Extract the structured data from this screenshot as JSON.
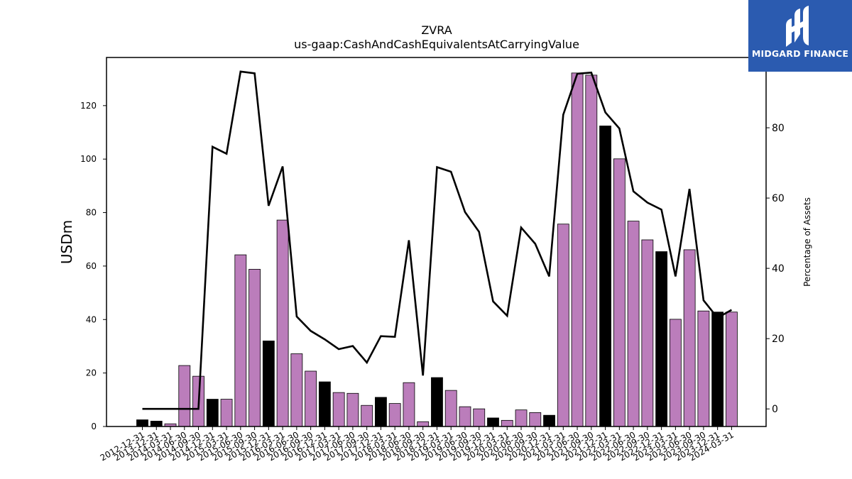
{
  "chart_data": {
    "type": "bar",
    "title": "ZVRA",
    "subtitle": "us-gaap:CashAndCashEquivalentsAtCarryingValue",
    "ylabel": "USDm",
    "y2label": "Percentage of Assets",
    "ylim": [
      0,
      138
    ],
    "y2lim": [
      -5,
      100
    ],
    "yticks": [
      0,
      20,
      40,
      60,
      80,
      100,
      120
    ],
    "y2ticks": [
      0,
      20,
      40,
      60,
      80
    ],
    "grid": false,
    "categories": [
      "2012-12-31",
      "2013-12-31",
      "2014-03-31",
      "2014-06-30",
      "2014-09-30",
      "2014-12-31",
      "2015-03-31",
      "2015-06-30",
      "2015-09-30",
      "2015-12-31",
      "2016-03-31",
      "2016-06-30",
      "2016-09-30",
      "2016-12-31",
      "2017-03-31",
      "2017-06-30",
      "2017-09-30",
      "2017-12-31",
      "2018-03-31",
      "2018-06-30",
      "2018-09-30",
      "2018-12-31",
      "2019-03-31",
      "2019-06-30",
      "2019-09-30",
      "2019-12-31",
      "2020-03-31",
      "2020-06-30",
      "2020-09-30",
      "2020-12-31",
      "2021-03-31",
      "2021-06-30",
      "2021-09-30",
      "2021-12-31",
      "2022-03-31",
      "2022-06-30",
      "2022-09-30",
      "2022-12-31",
      "2023-03-31",
      "2023-06-30",
      "2023-09-30",
      "2023-12-31",
      "2024-03-31"
    ],
    "series": [
      {
        "kind": "bar",
        "values": [
          2.5,
          2.0,
          1.0,
          22.8,
          18.8,
          10.2,
          10.2,
          64.2,
          58.8,
          32.0,
          77.2,
          27.2,
          20.7,
          16.7,
          12.7,
          12.4,
          7.9,
          10.9,
          8.6,
          16.4,
          1.8,
          18.3,
          13.5,
          7.4,
          6.6,
          3.2,
          2.3,
          6.2,
          5.2,
          4.2,
          75.7,
          132.2,
          131.4,
          112.4,
          100.1,
          76.8,
          69.8,
          65.4,
          40.1,
          66.1,
          43.2,
          42.8,
          42.8
        ],
        "colors": [
          "#000000",
          "#000000",
          "#bb7dbb",
          "#bb7dbb",
          "#bb7dbb",
          "#000000",
          "#bb7dbb",
          "#bb7dbb",
          "#bb7dbb",
          "#000000",
          "#bb7dbb",
          "#bb7dbb",
          "#bb7dbb",
          "#000000",
          "#bb7dbb",
          "#bb7dbb",
          "#bb7dbb",
          "#000000",
          "#bb7dbb",
          "#bb7dbb",
          "#bb7dbb",
          "#000000",
          "#bb7dbb",
          "#bb7dbb",
          "#bb7dbb",
          "#000000",
          "#bb7dbb",
          "#bb7dbb",
          "#bb7dbb",
          "#000000",
          "#bb7dbb",
          "#bb7dbb",
          "#bb7dbb",
          "#000000",
          "#bb7dbb",
          "#bb7dbb",
          "#bb7dbb",
          "#000000",
          "#bb7dbb",
          "#bb7dbb",
          "#bb7dbb",
          "#000000",
          "#bb7dbb"
        ]
      },
      {
        "kind": "line",
        "axis": "right",
        "color": "#000000",
        "values": [
          0.0,
          0.0,
          0.0,
          0.0,
          0.0,
          74.6,
          72.6,
          96.0,
          95.5,
          57.8,
          69.0,
          26.3,
          22.2,
          19.8,
          17.0,
          17.9,
          13.2,
          20.7,
          20.5,
          48.0,
          9.5,
          68.8,
          67.5,
          56.0,
          50.4,
          30.6,
          26.5,
          51.6,
          47.0,
          37.7,
          83.7,
          95.4,
          95.7,
          84.4,
          79.8,
          61.9,
          58.7,
          56.7,
          37.7,
          62.6,
          30.9,
          25.9,
          28.2
        ]
      }
    ]
  },
  "logo": {
    "text": "MIDGARD FINANCE",
    "color": "#2b5bb0",
    "icon": "midgard-logo-icon"
  }
}
